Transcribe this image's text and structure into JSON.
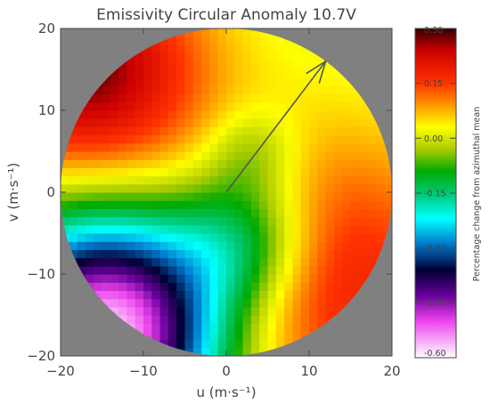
{
  "chart_data": {
    "type": "heatmap",
    "title": "Emissivity Circular Anomaly 10.7V",
    "xlabel": "u (m·s⁻¹)",
    "ylabel": "v (m·s⁻¹)",
    "xlim": [
      -20,
      20
    ],
    "ylim": [
      -20,
      20
    ],
    "x_ticks": [
      -20,
      -10,
      0,
      10,
      20
    ],
    "y_ticks": [
      -20,
      -10,
      0,
      10,
      20
    ],
    "x_tick_labels": [
      "−20",
      "−10",
      "0",
      "10",
      "20"
    ],
    "y_tick_labels": [
      "−20",
      "−10",
      "0",
      "10",
      "20"
    ],
    "domain_radius": 20,
    "background_color": "#808080",
    "arrow": {
      "from": [
        0,
        0
      ],
      "to": [
        12,
        16
      ]
    },
    "colorbar": {
      "label": "Percentage change from azimuthal mean",
      "range": [
        -0.6,
        0.3
      ],
      "ticks": [
        0.3,
        0.15,
        0.0,
        -0.15,
        -0.3,
        -0.45,
        -0.6
      ],
      "tick_labels": [
        "0.30",
        "0.15",
        "0.00",
        "-0.15",
        "-0.30",
        "-0.45",
        "-0.60"
      ],
      "colors": [
        {
          "value": 0.3,
          "color": "#330000"
        },
        {
          "value": 0.24,
          "color": "#cc0000"
        },
        {
          "value": 0.15,
          "color": "#ff3300"
        },
        {
          "value": 0.09,
          "color": "#ff9900"
        },
        {
          "value": 0.03,
          "color": "#ffff00"
        },
        {
          "value": -0.03,
          "color": "#aacc00"
        },
        {
          "value": -0.09,
          "color": "#00aa00"
        },
        {
          "value": -0.15,
          "color": "#00c870"
        },
        {
          "value": -0.22,
          "color": "#00ffff"
        },
        {
          "value": -0.29,
          "color": "#0077cc"
        },
        {
          "value": -0.36,
          "color": "#000033"
        },
        {
          "value": -0.43,
          "color": "#660099"
        },
        {
          "value": -0.5,
          "color": "#ee44ee"
        },
        {
          "value": -0.6,
          "color": "#ffffff"
        }
      ]
    },
    "anomaly_field": {
      "baseline": 0.0,
      "lobes": [
        {
          "center": [
            -17,
            15
          ],
          "spread": 10,
          "amplitude": 0.28
        },
        {
          "center": [
            12,
            -11
          ],
          "spread": 13,
          "amplitude": 0.19
        },
        {
          "center": [
            3,
            5
          ],
          "spread": 4,
          "amplitude": -0.08
        },
        {
          "center": [
            -14,
            -17
          ],
          "spread": 10,
          "amplitude": -0.6
        },
        {
          "center": [
            2,
            -6
          ],
          "spread": 6,
          "amplitude": -0.18
        }
      ]
    }
  }
}
